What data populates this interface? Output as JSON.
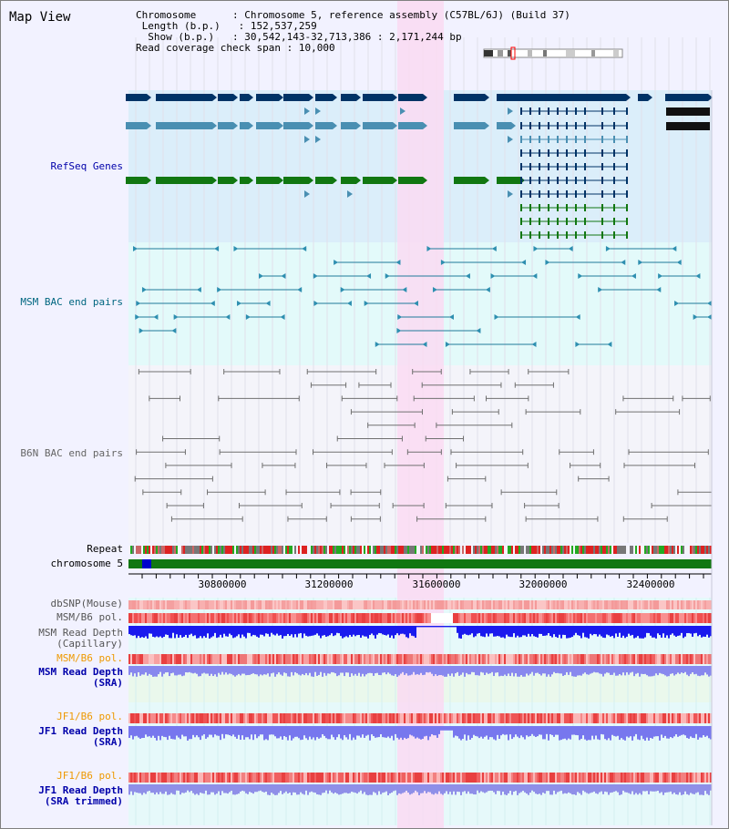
{
  "view": {
    "title": "Map View",
    "info": {
      "chromosome_key": "Chromosome",
      "chromosome_value": "Chromosome 5, reference assembly (C57BL/6J) (Build 37)",
      "length_key": "Length (b.p.)",
      "length_value": "152,537,259",
      "show_key": "Show (b.p.)",
      "show_value": "30,542,143-32,713,386 : 2,171,244 bp",
      "span_key": "Read coverage check span",
      "span_value": "10,000"
    }
  },
  "tracks": {
    "refseq": "RefSeq Genes",
    "msm_bac": "MSM BAC end pairs",
    "b6n_bac": "B6N BAC end pairs",
    "repeat": "Repeat",
    "chromosome": "chromosome 5",
    "dbsnp": "dbSNP(Mouse)",
    "msm_b6_pol_1": "MSM/B6 pol.",
    "msm_read_depth_cap_1": "MSM Read Depth",
    "msm_read_depth_cap_2": "(Capillary)",
    "msm_b6_pol_2": "MSM/B6 pol.",
    "msm_read_depth_sra_1": "MSM Read Depth",
    "msm_read_depth_sra_2": "(SRA)",
    "jf1_b6_pol_1": "JF1/B6 pol.",
    "jf1_read_depth_sra_1": "JF1 Read Depth",
    "jf1_read_depth_sra_2": "(SRA)",
    "jf1_b6_pol_2": "JF1/B6 pol.",
    "jf1_read_depth_trim_1": "JF1 Read Depth",
    "jf1_read_depth_trim_2": "(SRA trimmed)"
  },
  "axis": {
    "ticks": [
      "30800000",
      "31200000",
      "31600000",
      "32000000",
      "32400000"
    ]
  },
  "colors": {
    "refseq_bg": "#dbeefa",
    "msm_bg": "#e3fafa",
    "b6n_bg": "#f4f4fa",
    "highlight": "#fadaf2",
    "label_blue": "#0000aa",
    "label_teal": "#006680",
    "label_gray": "#666666",
    "label_orange": "#ee9900"
  }
}
